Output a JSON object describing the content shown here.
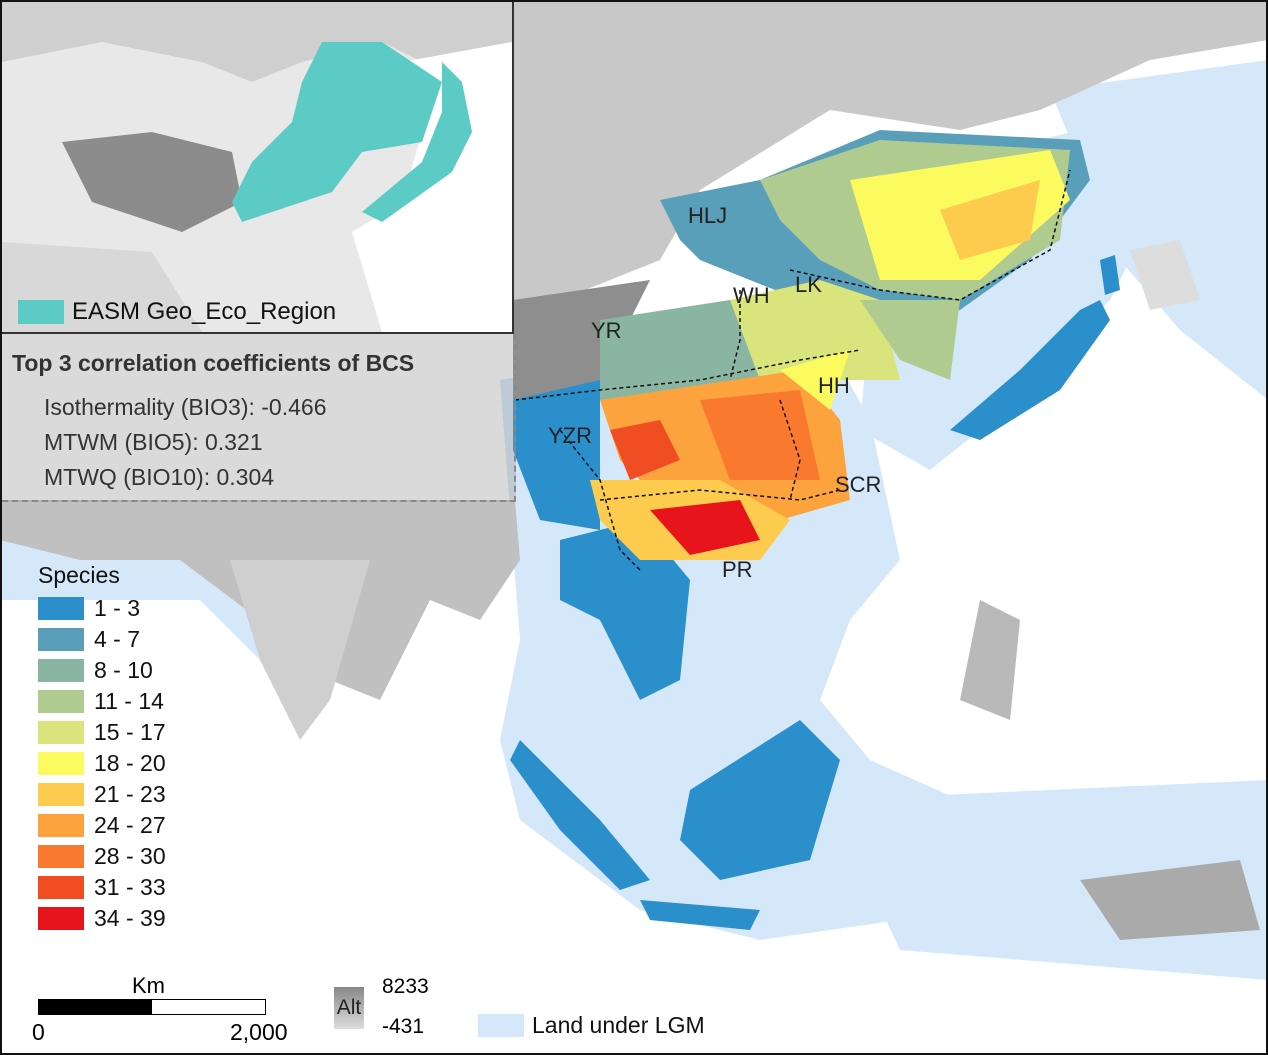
{
  "inset": {
    "legend_label": "EASM Geo_Eco_Region",
    "legend_color": "#5ccbc6"
  },
  "correlation_box": {
    "title": "Top 3 correlation coefficients of BCS",
    "rows": [
      "Isothermality (BIO3): -0.466",
      "MTWM (BIO5): 0.321",
      "MTWQ (BIO10): 0.304"
    ]
  },
  "region_labels": [
    "HLJ",
    "LK",
    "WH",
    "YR",
    "HH",
    "YZR",
    "SCR",
    "PR"
  ],
  "species_legend": {
    "title": "Species",
    "classes": [
      {
        "label": "1 - 3",
        "color": "#2b8fcc"
      },
      {
        "label": "4 - 7",
        "color": "#5a9fba"
      },
      {
        "label": "8 - 10",
        "color": "#8ab5a2"
      },
      {
        "label": "11 - 14",
        "color": "#b0cb8f"
      },
      {
        "label": "15 - 17",
        "color": "#d9e47c"
      },
      {
        "label": "18 - 20",
        "color": "#fbfb60"
      },
      {
        "label": "21 - 23",
        "color": "#fdcb4e"
      },
      {
        "label": "24 - 27",
        "color": "#fca33e"
      },
      {
        "label": "28 - 30",
        "color": "#f97a2e"
      },
      {
        "label": "31 - 33",
        "color": "#f04e22"
      },
      {
        "label": "34 - 39",
        "color": "#e8141b"
      }
    ]
  },
  "scale_bar": {
    "unit": "Km",
    "start": "0",
    "end": "2,000"
  },
  "altitude": {
    "label": "Alt",
    "max": "8233",
    "min": "-431"
  },
  "lgm_legend": {
    "label": "Land under LGM",
    "color": "#d4e8fa"
  }
}
